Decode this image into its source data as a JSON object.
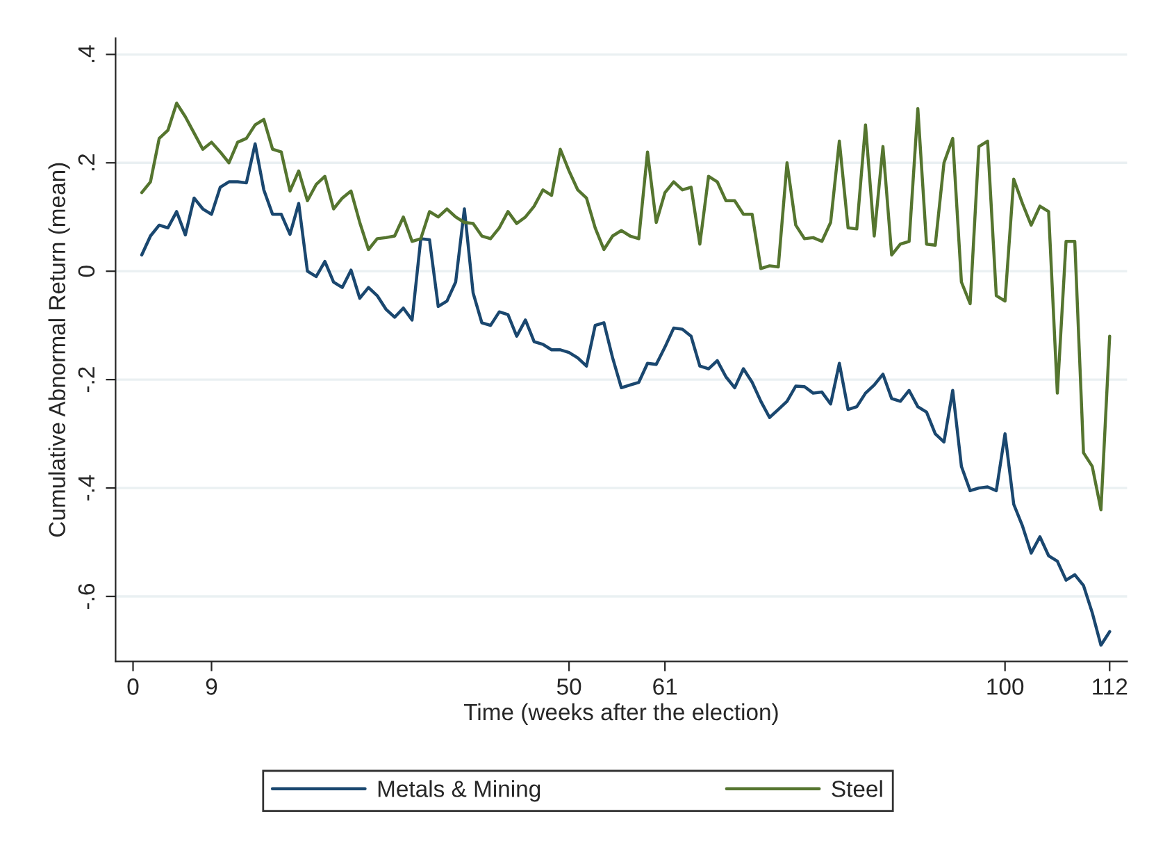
{
  "chart_data": {
    "type": "line",
    "xlabel": "Time (weeks after the election)",
    "ylabel": "Cumulative Abnormal Return (mean)",
    "x": [
      1,
      2,
      3,
      4,
      5,
      6,
      7,
      8,
      9,
      10,
      11,
      12,
      13,
      14,
      15,
      16,
      17,
      18,
      19,
      20,
      21,
      22,
      23,
      24,
      25,
      26,
      27,
      28,
      29,
      30,
      31,
      32,
      33,
      34,
      35,
      36,
      37,
      38,
      39,
      40,
      41,
      42,
      43,
      44,
      45,
      46,
      47,
      48,
      49,
      50,
      51,
      52,
      53,
      54,
      55,
      56,
      57,
      58,
      59,
      60,
      61,
      62,
      63,
      64,
      65,
      66,
      67,
      68,
      69,
      70,
      71,
      72,
      73,
      74,
      75,
      76,
      77,
      78,
      79,
      80,
      81,
      82,
      83,
      84,
      85,
      86,
      87,
      88,
      89,
      90,
      91,
      92,
      93,
      94,
      95,
      96,
      97,
      98,
      99,
      100,
      101,
      102,
      103,
      104,
      105,
      106,
      107,
      108,
      109,
      110,
      111,
      112
    ],
    "series": [
      {
        "name": "Metals & Mining",
        "color": "#1a476f",
        "values": [
          0.03,
          0.065,
          0.085,
          0.08,
          0.11,
          0.067,
          0.135,
          0.115,
          0.105,
          0.155,
          0.165,
          0.165,
          0.163,
          0.235,
          0.15,
          0.105,
          0.105,
          0.068,
          0.125,
          0.0,
          -0.01,
          0.018,
          -0.02,
          -0.03,
          0.002,
          -0.05,
          -0.03,
          -0.045,
          -0.07,
          -0.085,
          -0.068,
          -0.09,
          0.06,
          0.058,
          -0.065,
          -0.055,
          -0.02,
          0.115,
          -0.04,
          -0.095,
          -0.1,
          -0.075,
          -0.08,
          -0.12,
          -0.09,
          -0.13,
          -0.135,
          -0.145,
          -0.145,
          -0.15,
          -0.16,
          -0.175,
          -0.1,
          -0.095,
          -0.16,
          -0.215,
          -0.21,
          -0.205,
          -0.17,
          -0.172,
          -0.14,
          -0.105,
          -0.107,
          -0.12,
          -0.175,
          -0.18,
          -0.165,
          -0.195,
          -0.215,
          -0.18,
          -0.205,
          -0.24,
          -0.27,
          -0.255,
          -0.24,
          -0.212,
          -0.213,
          -0.225,
          -0.223,
          -0.245,
          -0.17,
          -0.255,
          -0.25,
          -0.225,
          -0.21,
          -0.19,
          -0.235,
          -0.24,
          -0.22,
          -0.25,
          -0.26,
          -0.3,
          -0.315,
          -0.22,
          -0.36,
          -0.405,
          -0.4,
          -0.398,
          -0.405,
          -0.3,
          -0.43,
          -0.47,
          -0.52,
          -0.49,
          -0.525,
          -0.535,
          -0.57,
          -0.56,
          -0.58,
          -0.63,
          -0.69,
          -0.665
        ]
      },
      {
        "name": "Steel",
        "color": "#55752f",
        "values": [
          0.145,
          0.165,
          0.245,
          0.26,
          0.31,
          0.285,
          0.255,
          0.225,
          0.238,
          0.22,
          0.2,
          0.238,
          0.245,
          0.27,
          0.28,
          0.225,
          0.22,
          0.148,
          0.185,
          0.13,
          0.16,
          0.175,
          0.115,
          0.135,
          0.148,
          0.09,
          0.04,
          0.06,
          0.062,
          0.065,
          0.1,
          0.055,
          0.06,
          0.11,
          0.1,
          0.115,
          0.1,
          0.09,
          0.088,
          0.065,
          0.06,
          0.08,
          0.11,
          0.088,
          0.1,
          0.12,
          0.15,
          0.14,
          0.225,
          0.185,
          0.15,
          0.135,
          0.08,
          0.04,
          0.065,
          0.075,
          0.065,
          0.06,
          0.22,
          0.09,
          0.145,
          0.165,
          0.15,
          0.155,
          0.05,
          0.175,
          0.165,
          0.13,
          0.13,
          0.105,
          0.105,
          0.005,
          0.01,
          0.008,
          0.2,
          0.085,
          0.06,
          0.062,
          0.055,
          0.09,
          0.24,
          0.08,
          0.078,
          0.27,
          0.065,
          0.23,
          0.03,
          0.05,
          0.055,
          0.3,
          0.05,
          0.048,
          0.2,
          0.245,
          -0.02,
          -0.06,
          0.23,
          0.24,
          -0.045,
          -0.055,
          0.17,
          0.125,
          0.085,
          0.12,
          0.11,
          -0.225,
          0.055,
          0.055,
          -0.335,
          -0.36,
          -0.44,
          -0.12
        ]
      }
    ],
    "xlim": [
      -2,
      114
    ],
    "xticks": [
      0,
      9,
      50,
      61,
      100,
      112
    ],
    "ylim": [
      -0.72,
      0.43
    ],
    "yticks": [
      {
        "value": -0.6,
        "label": "-.6"
      },
      {
        "value": -0.4,
        "label": "-.4"
      },
      {
        "value": -0.2,
        "label": "-.2"
      },
      {
        "value": 0,
        "label": "0"
      },
      {
        "value": 0.2,
        "label": ".2"
      },
      {
        "value": 0.4,
        "label": ".4"
      }
    ],
    "grid": "y",
    "legend": "bottom",
    "marker": "none",
    "line_style": "solid"
  }
}
